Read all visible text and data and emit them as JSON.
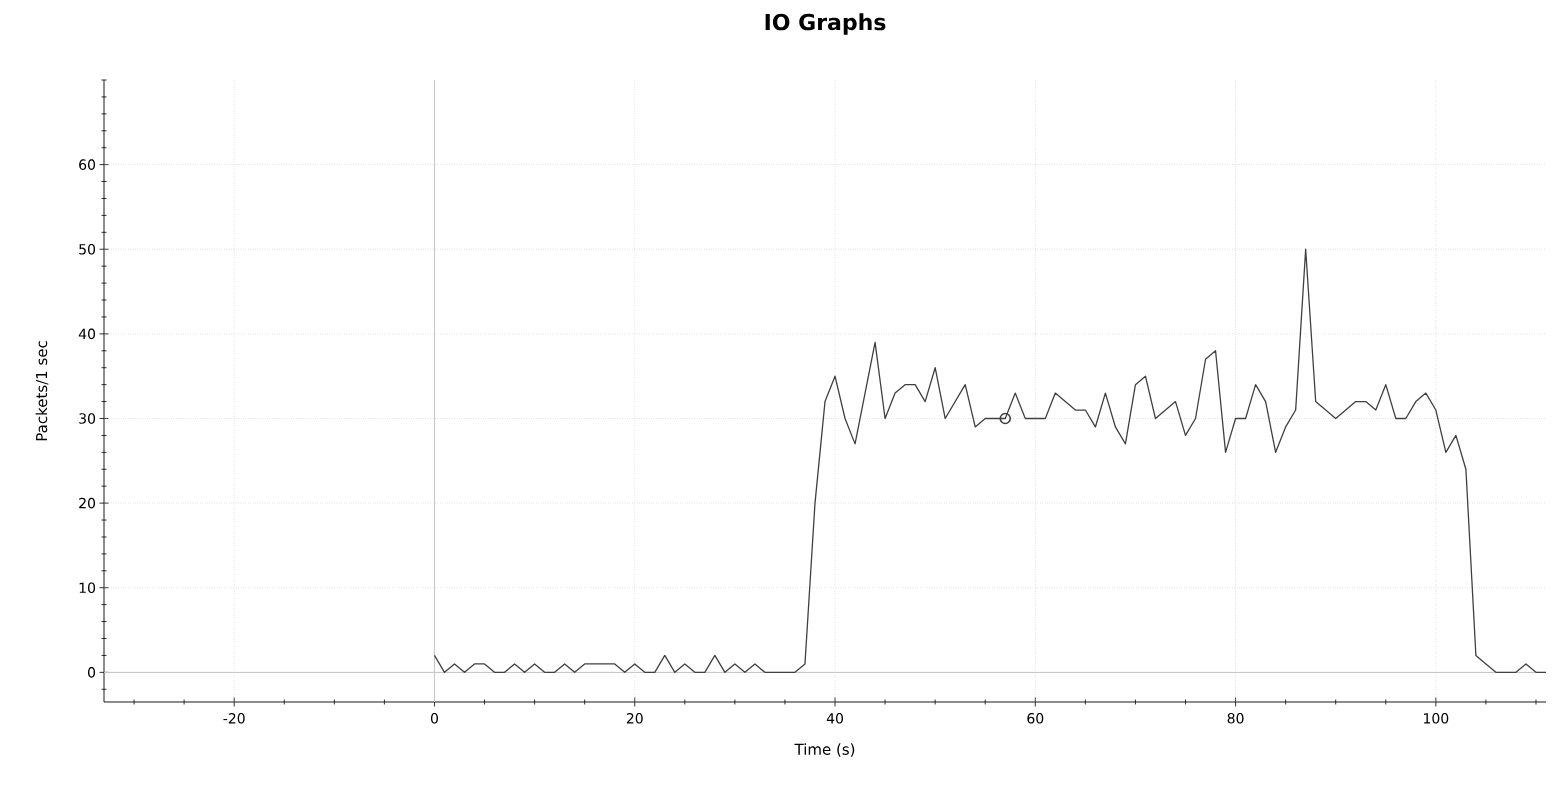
{
  "chart_data": {
    "type": "line",
    "title": "IO Graphs",
    "xlabel": "Time (s)",
    "ylabel": "Packets/1 sec",
    "x": [
      0,
      1,
      2,
      3,
      4,
      5,
      6,
      7,
      8,
      9,
      10,
      11,
      12,
      13,
      14,
      15,
      16,
      17,
      18,
      19,
      20,
      21,
      22,
      23,
      24,
      25,
      26,
      27,
      28,
      29,
      30,
      31,
      32,
      33,
      34,
      35,
      36,
      37,
      38,
      39,
      40,
      41,
      42,
      43,
      44,
      45,
      46,
      47,
      48,
      49,
      50,
      51,
      52,
      53,
      54,
      55,
      56,
      57,
      58,
      59,
      60,
      61,
      62,
      63,
      64,
      65,
      66,
      67,
      68,
      69,
      70,
      71,
      72,
      73,
      74,
      75,
      76,
      77,
      78,
      79,
      80,
      81,
      82,
      83,
      84,
      85,
      86,
      87,
      88,
      89,
      90,
      91,
      92,
      93,
      94,
      95,
      96,
      97,
      98,
      99,
      100,
      101,
      102,
      103,
      104,
      105,
      106,
      107,
      108,
      109,
      110,
      111
    ],
    "series": [
      {
        "color": "#404040",
        "values": [
          2,
          0,
          1,
          0,
          1,
          1,
          0,
          0,
          1,
          0,
          1,
          0,
          0,
          1,
          0,
          1,
          1,
          1,
          1,
          0,
          1,
          0,
          0,
          2,
          0,
          1,
          0,
          0,
          2,
          0,
          1,
          0,
          1,
          0,
          0,
          0,
          0,
          1,
          20,
          32,
          35,
          30,
          27,
          33,
          39,
          30,
          33,
          34,
          34,
          32,
          36,
          30,
          32,
          34,
          29,
          30,
          30,
          30,
          33,
          30,
          30,
          30,
          33,
          32,
          31,
          31,
          29,
          33,
          29,
          27,
          34,
          35,
          30,
          31,
          32,
          28,
          30,
          37,
          38,
          26,
          30,
          30,
          34,
          32,
          26,
          29,
          31,
          50,
          32,
          31,
          30,
          31,
          32,
          32,
          31,
          34,
          30,
          30,
          32,
          33,
          31,
          26,
          28,
          24,
          2,
          1,
          0,
          0,
          0,
          1,
          0,
          0
        ]
      },
      {
        "type": "scatter",
        "marker": "circle",
        "color": "#404040",
        "x": [
          57
        ],
        "values": [
          30
        ]
      }
    ],
    "xlim": [
      -33,
      111
    ],
    "ylim": [
      -3.5,
      70
    ],
    "xticks": [
      -20,
      0,
      20,
      40,
      60,
      80,
      100
    ],
    "yticks": [
      0,
      10,
      20,
      30,
      40,
      50,
      60
    ],
    "grid": true
  }
}
